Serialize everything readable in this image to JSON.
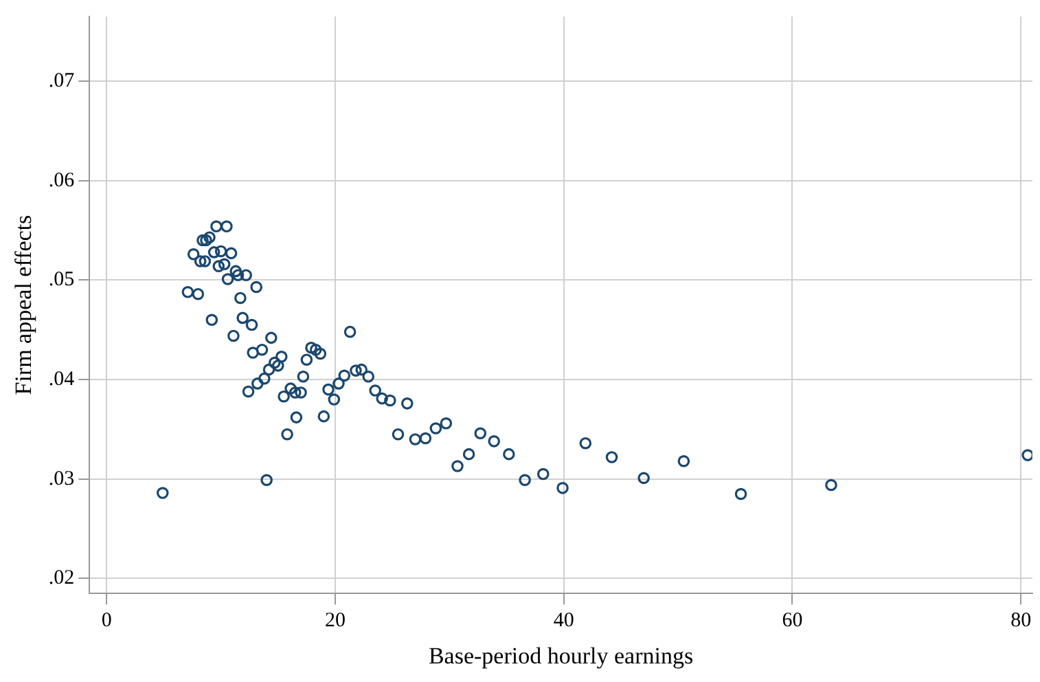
{
  "chart_data": {
    "type": "scatter",
    "xlabel": "Base-period hourly earnings",
    "ylabel": "Firm appeal effects",
    "marker": "circle",
    "grid": true,
    "xlim": [
      -1.5,
      81
    ],
    "ylim": [
      0.0185,
      0.0765
    ],
    "xticks": [
      0,
      20,
      40,
      60,
      80
    ],
    "yticks": [
      {
        "value": 0.02,
        "label": ".02"
      },
      {
        "value": 0.03,
        "label": ".03"
      },
      {
        "value": 0.04,
        "label": ".04"
      },
      {
        "value": 0.05,
        "label": ".05"
      },
      {
        "value": 0.06,
        "label": ".06"
      },
      {
        "value": 0.07,
        "label": ".07"
      }
    ],
    "series": [
      {
        "color": "#1a476f",
        "x": [
          9.6,
          10.5,
          8.4,
          8.7,
          9.0,
          7.6,
          8.2,
          8.6,
          9.4,
          10.0,
          10.9,
          9.8,
          10.3,
          11.3,
          11.5,
          12.2,
          10.6,
          13.1,
          7.1,
          8.0,
          11.7,
          9.2,
          11.9,
          12.7,
          11.1,
          14.4,
          12.8,
          13.6,
          15.3,
          14.7,
          15.0,
          14.2,
          13.8,
          13.2,
          12.4,
          17.5,
          17.9,
          17.2,
          16.1,
          16.5,
          17.0,
          15.5,
          16.6,
          15.8,
          14.0,
          4.9,
          18.3,
          18.7,
          21.3,
          19.0,
          19.4,
          19.9,
          20.3,
          20.8,
          21.8,
          22.3,
          22.9,
          23.5,
          24.1,
          24.8,
          26.3,
          25.5,
          27.0,
          27.9,
          28.8,
          29.7,
          30.7,
          31.7,
          32.7,
          33.9,
          35.2,
          36.6,
          38.2,
          39.9,
          41.9,
          44.2,
          47.0,
          50.5,
          55.5,
          63.4,
          80.6
        ],
        "values": [
          0.0554,
          0.0554,
          0.054,
          0.054,
          0.0543,
          0.0526,
          0.0519,
          0.0519,
          0.0528,
          0.0529,
          0.0527,
          0.0514,
          0.0516,
          0.0509,
          0.0505,
          0.0505,
          0.0501,
          0.0493,
          0.0488,
          0.0486,
          0.0482,
          0.046,
          0.0462,
          0.0455,
          0.0444,
          0.0442,
          0.0427,
          0.043,
          0.0423,
          0.0417,
          0.0414,
          0.041,
          0.0401,
          0.0396,
          0.0388,
          0.042,
          0.0432,
          0.0403,
          0.0391,
          0.0387,
          0.0387,
          0.0383,
          0.0362,
          0.0345,
          0.0299,
          0.0286,
          0.043,
          0.0426,
          0.0448,
          0.0363,
          0.039,
          0.038,
          0.0396,
          0.0404,
          0.0409,
          0.041,
          0.0403,
          0.0389,
          0.0381,
          0.0379,
          0.0376,
          0.0345,
          0.034,
          0.0341,
          0.0351,
          0.0356,
          0.0313,
          0.0325,
          0.0346,
          0.0338,
          0.0325,
          0.0299,
          0.0305,
          0.0291,
          0.0336,
          0.0322,
          0.0301,
          0.0318,
          0.0285,
          0.0294,
          0.0324
        ]
      }
    ]
  }
}
